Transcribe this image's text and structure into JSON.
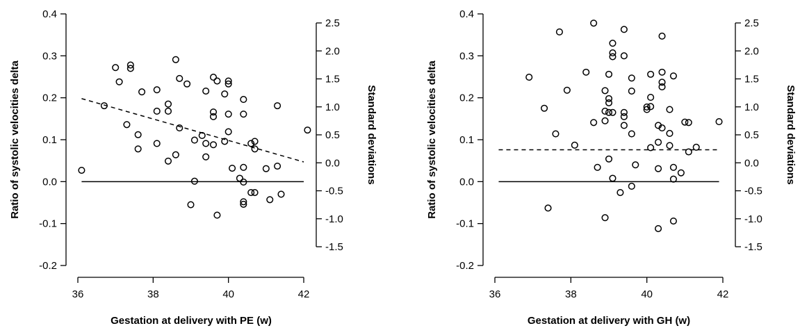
{
  "chart_data": [
    {
      "type": "scatter",
      "xlabel": "Gestation at delivery with PE (w)",
      "ylabel": "Ratio of systolic velocities delta",
      "y2label": "Standard deviations",
      "xlim": [
        36,
        42
      ],
      "ylim": [
        -0.2,
        0.4
      ],
      "y2lim": [
        -1.5,
        2.5
      ],
      "xticks": [
        "36",
        "38",
        "40",
        "42"
      ],
      "yticks": [
        "-0.2",
        "-0.1",
        "0.0",
        "0.1",
        "0.2",
        "0.3",
        "0.4"
      ],
      "y2ticks": [
        "-1.5",
        "-1.0",
        "-0.5",
        "0.0",
        "0.5",
        "1.0",
        "1.5",
        "2.0",
        "2.5"
      ],
      "reference_line": {
        "style": "solid",
        "y": 0.0,
        "x_range": [
          36.1,
          42.0
        ]
      },
      "trend_line": {
        "style": "dashed",
        "x": [
          36.1,
          42.0
        ],
        "y": [
          0.198,
          0.047
        ]
      },
      "points": [
        [
          36.1,
          0.027
        ],
        [
          36.7,
          0.181
        ],
        [
          37.0,
          0.272
        ],
        [
          37.1,
          0.238
        ],
        [
          37.3,
          0.136
        ],
        [
          37.4,
          0.278
        ],
        [
          37.4,
          0.27
        ],
        [
          37.6,
          0.112
        ],
        [
          37.6,
          0.078
        ],
        [
          37.7,
          0.214
        ],
        [
          38.1,
          0.219
        ],
        [
          38.1,
          0.168
        ],
        [
          38.1,
          0.091
        ],
        [
          38.4,
          0.185
        ],
        [
          38.4,
          0.168
        ],
        [
          38.4,
          0.049
        ],
        [
          38.6,
          0.291
        ],
        [
          38.6,
          0.064
        ],
        [
          38.7,
          0.246
        ],
        [
          38.7,
          0.128
        ],
        [
          38.9,
          0.233
        ],
        [
          39.0,
          -0.055
        ],
        [
          39.1,
          0.099
        ],
        [
          39.1,
          0.001
        ],
        [
          39.3,
          0.11
        ],
        [
          39.4,
          0.216
        ],
        [
          39.4,
          0.091
        ],
        [
          39.4,
          0.059
        ],
        [
          39.6,
          0.249
        ],
        [
          39.6,
          0.166
        ],
        [
          39.6,
          0.155
        ],
        [
          39.6,
          0.088
        ],
        [
          39.7,
          0.24
        ],
        [
          39.7,
          -0.08
        ],
        [
          39.9,
          0.209
        ],
        [
          39.9,
          0.096
        ],
        [
          40.0,
          0.24
        ],
        [
          40.0,
          0.233
        ],
        [
          40.0,
          0.161
        ],
        [
          40.0,
          0.119
        ],
        [
          40.1,
          0.032
        ],
        [
          40.3,
          0.008
        ],
        [
          40.4,
          0.196
        ],
        [
          40.4,
          0.161
        ],
        [
          40.4,
          0.034
        ],
        [
          40.4,
          -0.001
        ],
        [
          40.4,
          -0.048
        ],
        [
          40.4,
          -0.054
        ],
        [
          40.6,
          0.091
        ],
        [
          40.6,
          -0.026
        ],
        [
          40.7,
          0.096
        ],
        [
          40.7,
          0.078
        ],
        [
          40.7,
          -0.026
        ],
        [
          41.0,
          0.031
        ],
        [
          41.1,
          -0.043
        ],
        [
          41.3,
          0.181
        ],
        [
          41.3,
          0.037
        ],
        [
          41.4,
          -0.03
        ],
        [
          42.1,
          0.123
        ]
      ]
    },
    {
      "type": "scatter",
      "xlabel": "Gestation at delivery with GH (w)",
      "ylabel": "Ratio of systolic velocities delta",
      "y2label": "Standard deviations",
      "xlim": [
        36,
        42
      ],
      "ylim": [
        -0.2,
        0.4
      ],
      "y2lim": [
        -1.5,
        2.5
      ],
      "xticks": [
        "36",
        "38",
        "40",
        "42"
      ],
      "yticks": [
        "-0.2",
        "-0.1",
        "0.0",
        "0.1",
        "0.2",
        "0.3",
        "0.4"
      ],
      "y2ticks": [
        "-1.5",
        "-1.0",
        "-0.5",
        "0.0",
        "0.5",
        "1.0",
        "1.5",
        "2.0",
        "2.5"
      ],
      "reference_line": {
        "style": "solid",
        "y": 0.0,
        "x_range": [
          36.1,
          41.9
        ]
      },
      "trend_line": {
        "style": "dashed",
        "x": [
          36.1,
          41.9
        ],
        "y": [
          0.076,
          0.076
        ]
      },
      "points": [
        [
          36.9,
          0.249
        ],
        [
          37.3,
          0.175
        ],
        [
          37.4,
          -0.063
        ],
        [
          37.6,
          0.114
        ],
        [
          37.7,
          0.357
        ],
        [
          37.9,
          0.218
        ],
        [
          38.1,
          0.087
        ],
        [
          38.4,
          0.261
        ],
        [
          38.6,
          0.378
        ],
        [
          38.6,
          0.141
        ],
        [
          38.7,
          0.034
        ],
        [
          38.9,
          0.217
        ],
        [
          38.9,
          0.168
        ],
        [
          38.9,
          0.145
        ],
        [
          38.9,
          -0.086
        ],
        [
          39.0,
          0.256
        ],
        [
          39.0,
          0.198
        ],
        [
          39.0,
          0.188
        ],
        [
          39.0,
          0.165
        ],
        [
          39.0,
          0.054
        ],
        [
          39.1,
          0.33
        ],
        [
          39.1,
          0.307
        ],
        [
          39.1,
          0.298
        ],
        [
          39.1,
          0.165
        ],
        [
          39.1,
          0.008
        ],
        [
          39.3,
          -0.026
        ],
        [
          39.4,
          0.363
        ],
        [
          39.4,
          0.3
        ],
        [
          39.4,
          0.165
        ],
        [
          39.4,
          0.155
        ],
        [
          39.4,
          0.134
        ],
        [
          39.6,
          0.247
        ],
        [
          39.6,
          0.216
        ],
        [
          39.6,
          0.114
        ],
        [
          39.6,
          -0.011
        ],
        [
          39.7,
          0.04
        ],
        [
          40.0,
          0.178
        ],
        [
          40.0,
          0.172
        ],
        [
          40.1,
          0.256
        ],
        [
          40.1,
          0.201
        ],
        [
          40.1,
          0.179
        ],
        [
          40.1,
          0.081
        ],
        [
          40.3,
          0.134
        ],
        [
          40.3,
          0.094
        ],
        [
          40.3,
          0.031
        ],
        [
          40.3,
          -0.112
        ],
        [
          40.4,
          0.347
        ],
        [
          40.4,
          0.261
        ],
        [
          40.4,
          0.237
        ],
        [
          40.4,
          0.226
        ],
        [
          40.4,
          0.128
        ],
        [
          40.6,
          0.172
        ],
        [
          40.6,
          0.115
        ],
        [
          40.6,
          0.086
        ],
        [
          40.7,
          0.252
        ],
        [
          40.7,
          0.034
        ],
        [
          40.7,
          0.006
        ],
        [
          40.7,
          -0.094
        ],
        [
          40.9,
          0.021
        ],
        [
          41.0,
          0.142
        ],
        [
          41.1,
          0.141
        ],
        [
          41.1,
          0.071
        ],
        [
          41.3,
          0.082
        ],
        [
          41.9,
          0.143
        ]
      ]
    }
  ]
}
